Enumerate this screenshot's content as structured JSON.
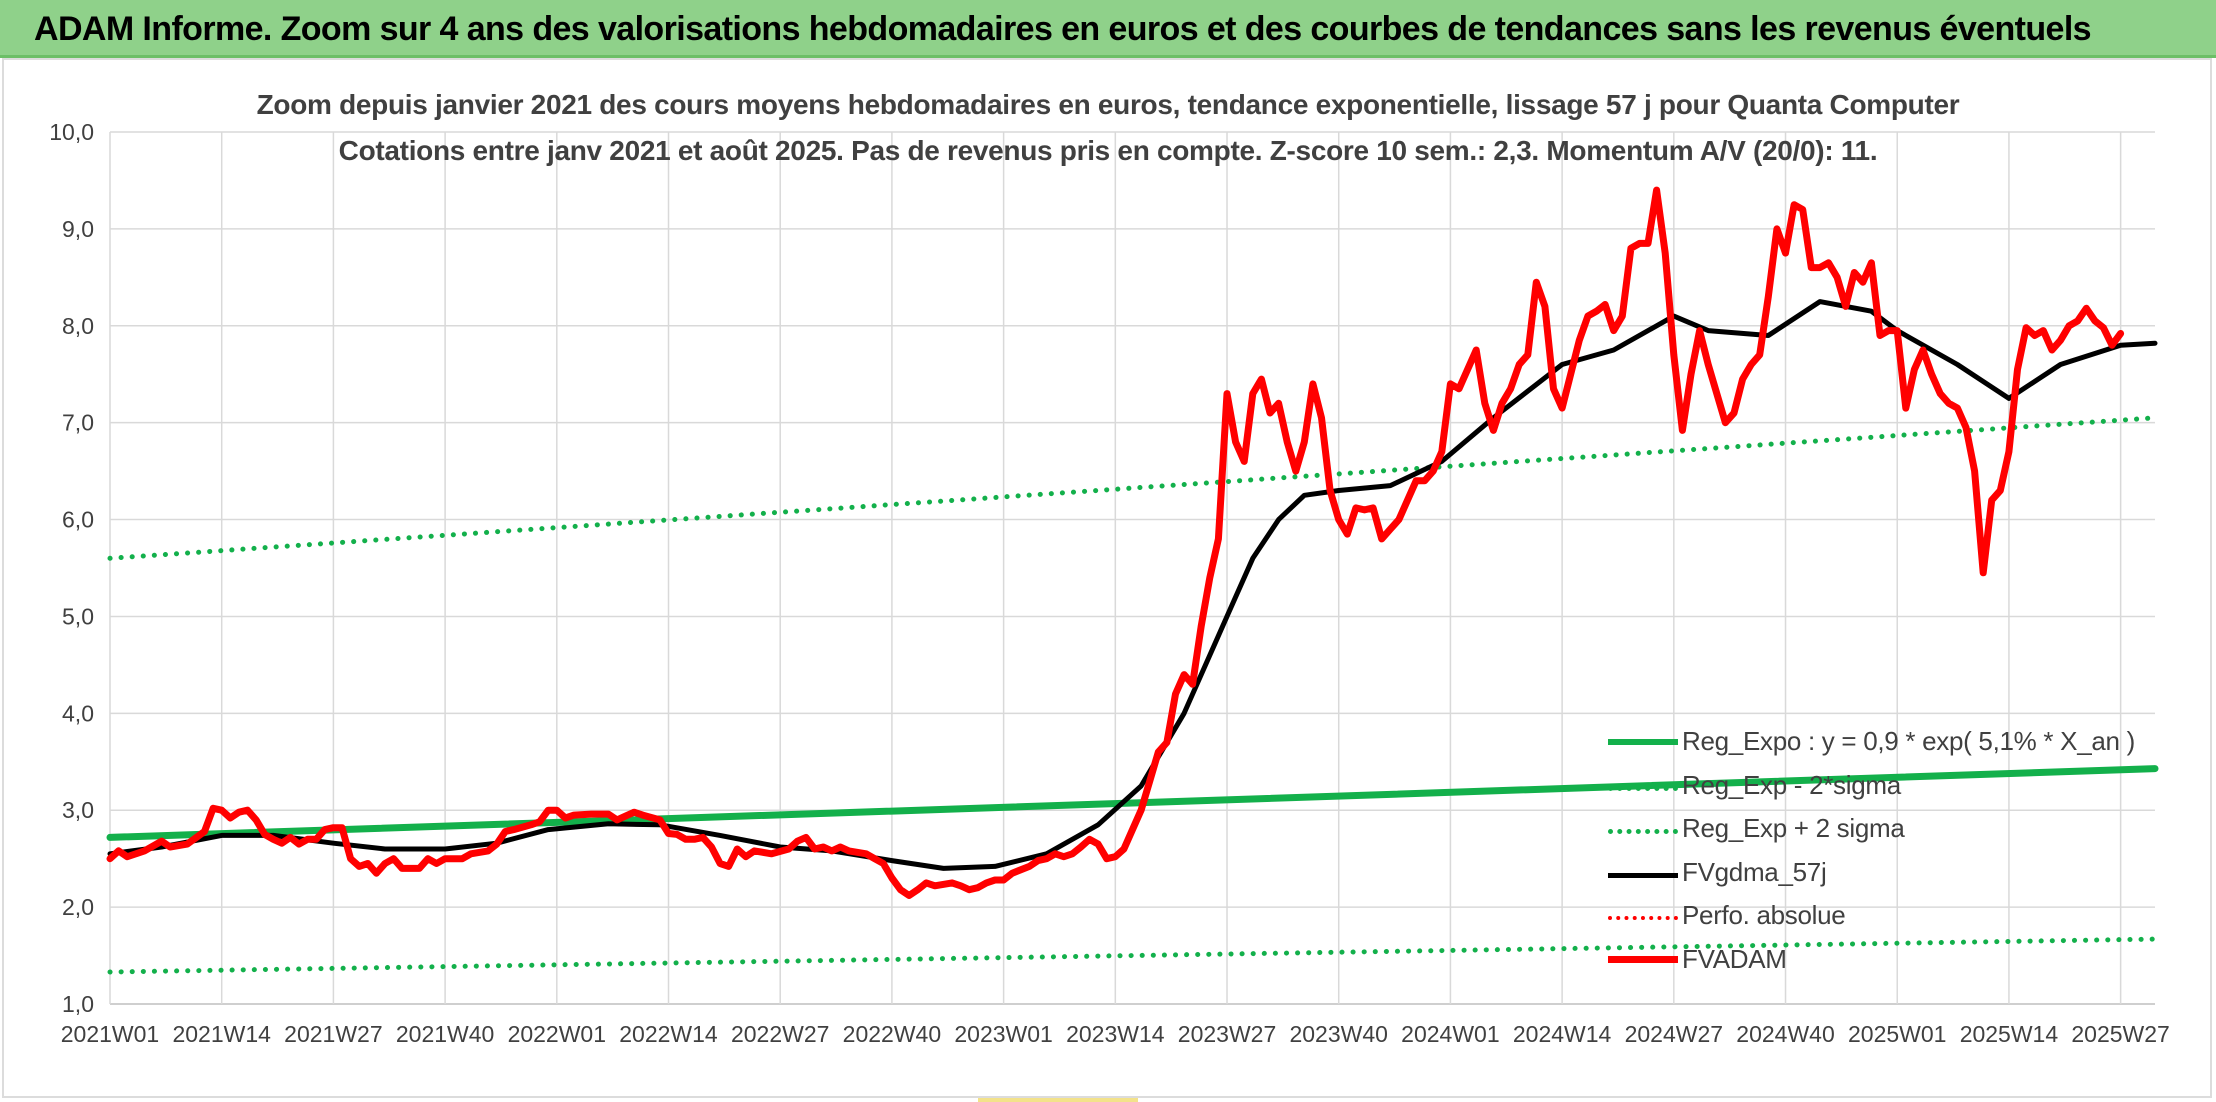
{
  "banner": {
    "title": "ADAM Informe. Zoom sur 4 ans des valorisations hebdomadaires en euros et des courbes de tendances sans les revenus éventuels",
    "color": "#8fd18a"
  },
  "chart_data": {
    "type": "line",
    "title": "Zoom depuis janvier 2021 des cours moyens hebdomadaires en euros, tendance exponentielle, lissage 57 j pour Quanta Computer",
    "subtitle": "Cotations entre janv 2021 et août 2025. Pas de revenus pris en compte. Z-score 10 sem.: 2,3. Momentum A/V (20/0): 11.",
    "xlabel": "",
    "ylabel": "",
    "ylim": [
      1.0,
      10.0
    ],
    "yticks": [
      "1,0",
      "2,0",
      "3,0",
      "4,0",
      "5,0",
      "6,0",
      "7,0",
      "8,0",
      "9,0",
      "10,0"
    ],
    "x_tick_labels": [
      "2021W01",
      "2021W14",
      "2021W27",
      "2021W40",
      "2022W01",
      "2022W14",
      "2022W27",
      "2022W40",
      "2023W01",
      "2023W14",
      "2023W27",
      "2023W40",
      "2024W01",
      "2024W14",
      "2024W27",
      "2024W40",
      "2025W01",
      "2025W14",
      "2025W27"
    ],
    "x_range": [
      "2021W01",
      "2025W31"
    ],
    "grid": true,
    "legend_position": "bottom-right",
    "series": [
      {
        "name": "Reg_Expo : y = 0,9 * exp( 5,1% *  X_an )",
        "color": "#13b04b",
        "style": "solid",
        "points": [
          [
            "2021W01",
            2.72
          ],
          [
            "2025W31",
            3.43
          ]
        ]
      },
      {
        "name": "Reg_Exp - 2*sigma",
        "color": "#13b04b",
        "style": "dotted",
        "points": [
          [
            "2021W01",
            1.33
          ],
          [
            "2025W31",
            1.67
          ]
        ]
      },
      {
        "name": "Reg_Exp + 2 sigma",
        "color": "#13b04b",
        "style": "dotted",
        "points": [
          [
            "2021W01",
            5.6
          ],
          [
            "2025W31",
            7.05
          ]
        ]
      },
      {
        "name": "FVgdma_57j",
        "color": "#000000",
        "style": "solid",
        "points": [
          [
            "2021W01",
            2.55
          ],
          [
            "2021W07",
            2.62
          ],
          [
            "2021W14",
            2.74
          ],
          [
            "2021W20",
            2.74
          ],
          [
            "2021W27",
            2.66
          ],
          [
            "2021W33",
            2.6
          ],
          [
            "2021W40",
            2.6
          ],
          [
            "2021W46",
            2.66
          ],
          [
            "2021W52",
            2.8
          ],
          [
            "2022W07",
            2.86
          ],
          [
            "2022W13",
            2.85
          ],
          [
            "2022W20",
            2.74
          ],
          [
            "2022W27",
            2.62
          ],
          [
            "2022W33",
            2.58
          ],
          [
            "2022W40",
            2.48
          ],
          [
            "2022W46",
            2.4
          ],
          [
            "2022W52",
            2.42
          ],
          [
            "2023W06",
            2.55
          ],
          [
            "2023W12",
            2.85
          ],
          [
            "2023W17",
            3.25
          ],
          [
            "2023W22",
            4.0
          ],
          [
            "2023W27",
            5.0
          ],
          [
            "2023W30",
            5.6
          ],
          [
            "2023W33",
            6.0
          ],
          [
            "2023W36",
            6.25
          ],
          [
            "2023W40",
            6.3
          ],
          [
            "2023W46",
            6.35
          ],
          [
            "2023W52",
            6.6
          ],
          [
            "2024W06",
            7.05
          ],
          [
            "2024W14",
            7.6
          ],
          [
            "2024W20",
            7.75
          ],
          [
            "2024W27",
            8.1
          ],
          [
            "2024W31",
            7.95
          ],
          [
            "2024W38",
            7.9
          ],
          [
            "2024W44",
            8.25
          ],
          [
            "2024W50",
            8.15
          ],
          [
            "2025W01",
            7.95
          ],
          [
            "2025W08",
            7.6
          ],
          [
            "2025W14",
            7.25
          ],
          [
            "2025W20",
            7.6
          ],
          [
            "2025W27",
            7.8
          ],
          [
            "2025W31",
            7.82
          ]
        ]
      },
      {
        "name": "Perfo. absolue",
        "color": "#ff0000",
        "style": "dotted",
        "points": []
      },
      {
        "name": "FVADAM",
        "color": "#ff0000",
        "style": "solid",
        "points": [
          [
            "2021W01",
            2.5
          ],
          [
            "2021W02",
            2.58
          ],
          [
            "2021W03",
            2.52
          ],
          [
            "2021W05",
            2.58
          ],
          [
            "2021W07",
            2.68
          ],
          [
            "2021W08",
            2.62
          ],
          [
            "2021W10",
            2.65
          ],
          [
            "2021W12",
            2.78
          ],
          [
            "2021W13",
            3.02
          ],
          [
            "2021W14",
            3.0
          ],
          [
            "2021W15",
            2.92
          ],
          [
            "2021W16",
            2.98
          ],
          [
            "2021W17",
            3.0
          ],
          [
            "2021W18",
            2.9
          ],
          [
            "2021W19",
            2.75
          ],
          [
            "2021W20",
            2.7
          ],
          [
            "2021W21",
            2.66
          ],
          [
            "2021W22",
            2.72
          ],
          [
            "2021W23",
            2.65
          ],
          [
            "2021W24",
            2.7
          ],
          [
            "2021W25",
            2.7
          ],
          [
            "2021W26",
            2.8
          ],
          [
            "2021W27",
            2.82
          ],
          [
            "2021W28",
            2.82
          ],
          [
            "2021W29",
            2.5
          ],
          [
            "2021W30",
            2.42
          ],
          [
            "2021W31",
            2.45
          ],
          [
            "2021W32",
            2.35
          ],
          [
            "2021W33",
            2.45
          ],
          [
            "2021W34",
            2.5
          ],
          [
            "2021W35",
            2.4
          ],
          [
            "2021W37",
            2.4
          ],
          [
            "2021W38",
            2.5
          ],
          [
            "2021W39",
            2.45
          ],
          [
            "2021W40",
            2.5
          ],
          [
            "2021W42",
            2.5
          ],
          [
            "2021W43",
            2.55
          ],
          [
            "2021W45",
            2.58
          ],
          [
            "2021W46",
            2.65
          ],
          [
            "2021W47",
            2.78
          ],
          [
            "2021W48",
            2.8
          ],
          [
            "2021W50",
            2.85
          ],
          [
            "2021W51",
            2.88
          ],
          [
            "2021W52",
            3.0
          ],
          [
            "2022W01",
            3.0
          ],
          [
            "2022W02",
            2.92
          ],
          [
            "2022W03",
            2.95
          ],
          [
            "2022W05",
            2.96
          ],
          [
            "2022W07",
            2.96
          ],
          [
            "2022W08",
            2.9
          ],
          [
            "2022W10",
            2.98
          ],
          [
            "2022W11",
            2.95
          ],
          [
            "2022W13",
            2.9
          ],
          [
            "2022W14",
            2.76
          ],
          [
            "2022W15",
            2.75
          ],
          [
            "2022W16",
            2.7
          ],
          [
            "2022W17",
            2.7
          ],
          [
            "2022W18",
            2.72
          ],
          [
            "2022W19",
            2.62
          ],
          [
            "2022W20",
            2.45
          ],
          [
            "2022W21",
            2.42
          ],
          [
            "2022W22",
            2.6
          ],
          [
            "2022W23",
            2.52
          ],
          [
            "2022W24",
            2.58
          ],
          [
            "2022W26",
            2.55
          ],
          [
            "2022W28",
            2.6
          ],
          [
            "2022W29",
            2.68
          ],
          [
            "2022W30",
            2.72
          ],
          [
            "2022W31",
            2.6
          ],
          [
            "2022W32",
            2.62
          ],
          [
            "2022W33",
            2.58
          ],
          [
            "2022W34",
            2.62
          ],
          [
            "2022W35",
            2.58
          ],
          [
            "2022W37",
            2.55
          ],
          [
            "2022W38",
            2.5
          ],
          [
            "2022W39",
            2.45
          ],
          [
            "2022W40",
            2.3
          ],
          [
            "2022W41",
            2.18
          ],
          [
            "2022W42",
            2.12
          ],
          [
            "2022W43",
            2.18
          ],
          [
            "2022W44",
            2.25
          ],
          [
            "2022W45",
            2.22
          ],
          [
            "2022W47",
            2.25
          ],
          [
            "2022W48",
            2.22
          ],
          [
            "2022W49",
            2.18
          ],
          [
            "2022W50",
            2.2
          ],
          [
            "2022W51",
            2.25
          ],
          [
            "2022W52",
            2.28
          ],
          [
            "2023W01",
            2.28
          ],
          [
            "2023W02",
            2.35
          ],
          [
            "2023W04",
            2.42
          ],
          [
            "2023W05",
            2.48
          ],
          [
            "2023W06",
            2.5
          ],
          [
            "2023W07",
            2.55
          ],
          [
            "2023W08",
            2.52
          ],
          [
            "2023W09",
            2.55
          ],
          [
            "2023W10",
            2.62
          ],
          [
            "2023W11",
            2.7
          ],
          [
            "2023W12",
            2.65
          ],
          [
            "2023W13",
            2.5
          ],
          [
            "2023W14",
            2.52
          ],
          [
            "2023W15",
            2.6
          ],
          [
            "2023W16",
            2.8
          ],
          [
            "2023W17",
            3.0
          ],
          [
            "2023W18",
            3.3
          ],
          [
            "2023W19",
            3.6
          ],
          [
            "2023W20",
            3.7
          ],
          [
            "2023W21",
            4.2
          ],
          [
            "2023W22",
            4.4
          ],
          [
            "2023W23",
            4.3
          ],
          [
            "2023W24",
            4.9
          ],
          [
            "2023W25",
            5.4
          ],
          [
            "2023W26",
            5.8
          ],
          [
            "2023W27",
            7.3
          ],
          [
            "2023W28",
            6.8
          ],
          [
            "2023W29",
            6.6
          ],
          [
            "2023W30",
            7.3
          ],
          [
            "2023W31",
            7.45
          ],
          [
            "2023W32",
            7.1
          ],
          [
            "2023W33",
            7.2
          ],
          [
            "2023W34",
            6.8
          ],
          [
            "2023W35",
            6.5
          ],
          [
            "2023W36",
            6.8
          ],
          [
            "2023W37",
            7.4
          ],
          [
            "2023W38",
            7.05
          ],
          [
            "2023W39",
            6.3
          ],
          [
            "2023W40",
            6.0
          ],
          [
            "2023W41",
            5.85
          ],
          [
            "2023W42",
            6.12
          ],
          [
            "2023W43",
            6.1
          ],
          [
            "2023W44",
            6.12
          ],
          [
            "2023W45",
            5.8
          ],
          [
            "2023W46",
            5.9
          ],
          [
            "2023W47",
            6.0
          ],
          [
            "2023W48",
            6.2
          ],
          [
            "2023W49",
            6.4
          ],
          [
            "2023W50",
            6.4
          ],
          [
            "2023W51",
            6.5
          ],
          [
            "2023W52",
            6.7
          ],
          [
            "2024W01",
            7.4
          ],
          [
            "2024W02",
            7.35
          ],
          [
            "2024W03",
            7.55
          ],
          [
            "2024W04",
            7.75
          ],
          [
            "2024W05",
            7.2
          ],
          [
            "2024W06",
            6.92
          ],
          [
            "2024W07",
            7.2
          ],
          [
            "2024W08",
            7.35
          ],
          [
            "2024W09",
            7.6
          ],
          [
            "2024W10",
            7.7
          ],
          [
            "2024W11",
            8.45
          ],
          [
            "2024W12",
            8.2
          ],
          [
            "2024W13",
            7.35
          ],
          [
            "2024W14",
            7.15
          ],
          [
            "2024W15",
            7.5
          ],
          [
            "2024W16",
            7.85
          ],
          [
            "2024W17",
            8.1
          ],
          [
            "2024W18",
            8.15
          ],
          [
            "2024W19",
            8.22
          ],
          [
            "2024W20",
            7.95
          ],
          [
            "2024W21",
            8.1
          ],
          [
            "2024W22",
            8.8
          ],
          [
            "2024W23",
            8.85
          ],
          [
            "2024W24",
            8.85
          ],
          [
            "2024W25",
            9.4
          ],
          [
            "2024W26",
            8.75
          ],
          [
            "2024W27",
            7.7
          ],
          [
            "2024W28",
            6.92
          ],
          [
            "2024W29",
            7.5
          ],
          [
            "2024W30",
            7.95
          ],
          [
            "2024W31",
            7.6
          ],
          [
            "2024W32",
            7.3
          ],
          [
            "2024W33",
            7.0
          ],
          [
            "2024W34",
            7.1
          ],
          [
            "2024W35",
            7.45
          ],
          [
            "2024W36",
            7.6
          ],
          [
            "2024W37",
            7.7
          ],
          [
            "2024W38",
            8.3
          ],
          [
            "2024W39",
            9.0
          ],
          [
            "2024W40",
            8.75
          ],
          [
            "2024W41",
            9.25
          ],
          [
            "2024W42",
            9.2
          ],
          [
            "2024W43",
            8.6
          ],
          [
            "2024W44",
            8.6
          ],
          [
            "2024W45",
            8.65
          ],
          [
            "2024W46",
            8.5
          ],
          [
            "2024W47",
            8.2
          ],
          [
            "2024W48",
            8.55
          ],
          [
            "2024W49",
            8.45
          ],
          [
            "2024W50",
            8.65
          ],
          [
            "2024W51",
            7.9
          ],
          [
            "2024W52",
            7.95
          ],
          [
            "2025W01",
            7.95
          ],
          [
            "2025W02",
            7.15
          ],
          [
            "2025W03",
            7.55
          ],
          [
            "2025W04",
            7.75
          ],
          [
            "2025W05",
            7.5
          ],
          [
            "2025W06",
            7.3
          ],
          [
            "2025W07",
            7.2
          ],
          [
            "2025W08",
            7.15
          ],
          [
            "2025W09",
            6.95
          ],
          [
            "2025W10",
            6.5
          ],
          [
            "2025W11",
            5.45
          ],
          [
            "2025W12",
            6.2
          ],
          [
            "2025W13",
            6.3
          ],
          [
            "2025W14",
            6.7
          ],
          [
            "2025W15",
            7.55
          ],
          [
            "2025W16",
            7.98
          ],
          [
            "2025W17",
            7.9
          ],
          [
            "2025W18",
            7.95
          ],
          [
            "2025W19",
            7.75
          ],
          [
            "2025W20",
            7.85
          ],
          [
            "2025W21",
            8.0
          ],
          [
            "2025W22",
            8.05
          ],
          [
            "2025W23",
            8.18
          ],
          [
            "2025W24",
            8.05
          ],
          [
            "2025W25",
            7.98
          ],
          [
            "2025W26",
            7.8
          ],
          [
            "2025W27",
            7.92
          ]
        ]
      }
    ]
  }
}
